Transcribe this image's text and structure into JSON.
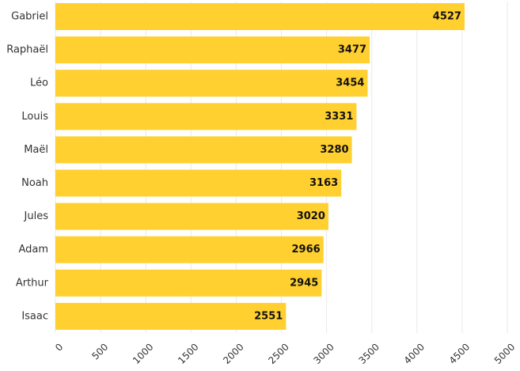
{
  "chart_data": {
    "type": "bar",
    "orientation": "horizontal",
    "categories": [
      "Gabriel",
      "Raphaël",
      "Léo",
      "Louis",
      "Maël",
      "Noah",
      "Jules",
      "Adam",
      "Arthur",
      "Isaac"
    ],
    "values": [
      4527,
      3477,
      3454,
      3331,
      3280,
      3163,
      3020,
      2966,
      2945,
      2551
    ],
    "title": "",
    "xlabel": "",
    "ylabel": "",
    "xlim": [
      0,
      5000
    ],
    "xticks": [
      "0",
      "500",
      "1000",
      "1500",
      "2000",
      "2500",
      "3000",
      "3500",
      "4000",
      "4500",
      "5000"
    ],
    "grid": true,
    "legend": "none",
    "bar_color": "#ffd02f",
    "data_labels": true
  }
}
